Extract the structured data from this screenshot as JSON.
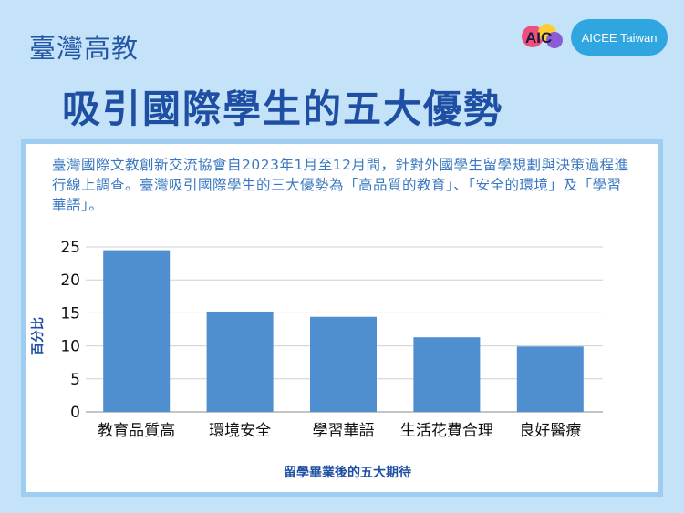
{
  "header": {
    "subtitle": "臺灣高教",
    "title": "吸引國際學生的五大優勢",
    "logo_text": "AIC",
    "badge": "AICEE Taiwan"
  },
  "description": "臺灣國際文教創新交流協會自2023年1月至12月間，針對外國學生留學規劃與決策過程進行線上調查。臺灣吸引國際學生的三大優勢為「高品質的教育」、「安全的環境」及「學習華語」。",
  "colors": {
    "bar": "#4f8fd0",
    "accent": "#1e4fa3",
    "badge": "#2fa6e0"
  },
  "chart_data": {
    "type": "bar",
    "categories": [
      "教育品質高",
      "環境安全",
      "學習華語",
      "生活花費合理",
      "良好醫療"
    ],
    "values": [
      24.5,
      15.2,
      14.4,
      11.3,
      9.9
    ],
    "yticks": [
      0,
      5,
      10,
      15,
      20,
      25
    ],
    "ylim": [
      0,
      25
    ],
    "ylabel": "百分比",
    "xlabel": "留學畢業後的五大期待",
    "grid": true
  }
}
